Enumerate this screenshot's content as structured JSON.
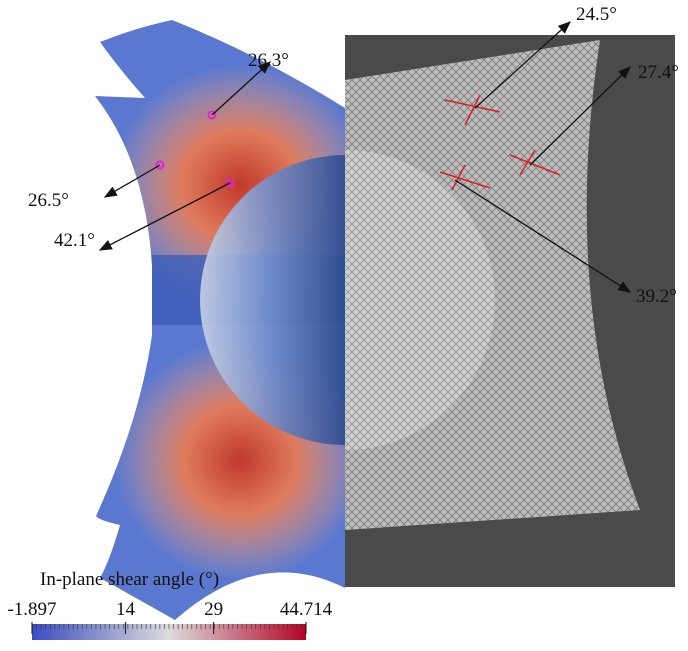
{
  "annotations": [
    {
      "label": "26.3°"
    },
    {
      "label": "26.5°"
    },
    {
      "label": "42.1°"
    },
    {
      "label": "24.5°"
    },
    {
      "label": "27.4°"
    },
    {
      "label": "39.2°"
    }
  ],
  "colorbar": {
    "title": "In-plane shear angle (°)",
    "lim": [
      -1.897,
      44.714
    ],
    "ticks": [
      -1.897,
      14,
      29,
      44.714
    ]
  }
}
